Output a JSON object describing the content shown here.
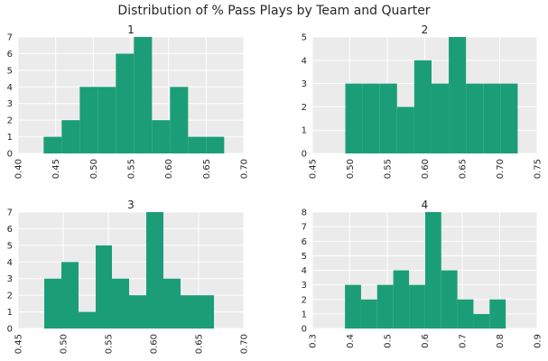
{
  "figure": {
    "title": "Distribution of % Pass Plays by Team and Quarter",
    "background": "#ffffff",
    "panel_background": "#ebebeb",
    "grid_color": "#ffffff",
    "bar_color": "#1b9e77",
    "text_color": "#262626"
  },
  "chart_data": [
    {
      "type": "bar",
      "title": "1",
      "xlabel": "",
      "ylabel": "",
      "xlim": [
        0.4,
        0.7
      ],
      "ylim": [
        0,
        7
      ],
      "xticks": [
        "0.40",
        "0.45",
        "0.50",
        "0.55",
        "0.60",
        "0.65",
        "0.70"
      ],
      "yticks": [
        "0",
        "1",
        "2",
        "3",
        "4",
        "5",
        "6",
        "7"
      ],
      "grid": true,
      "bins": [
        {
          "x0": 0.434,
          "x1": 0.458,
          "count": 1
        },
        {
          "x0": 0.458,
          "x1": 0.482,
          "count": 2
        },
        {
          "x0": 0.482,
          "x1": 0.506,
          "count": 4
        },
        {
          "x0": 0.506,
          "x1": 0.53,
          "count": 4
        },
        {
          "x0": 0.53,
          "x1": 0.554,
          "count": 6
        },
        {
          "x0": 0.554,
          "x1": 0.578,
          "count": 7
        },
        {
          "x0": 0.578,
          "x1": 0.602,
          "count": 2
        },
        {
          "x0": 0.602,
          "x1": 0.626,
          "count": 4
        },
        {
          "x0": 0.626,
          "x1": 0.65,
          "count": 1
        },
        {
          "x0": 0.65,
          "x1": 0.674,
          "count": 1
        }
      ]
    },
    {
      "type": "bar",
      "title": "2",
      "xlabel": "",
      "ylabel": "",
      "xlim": [
        0.45,
        0.75
      ],
      "ylim": [
        0,
        5
      ],
      "xticks": [
        "0.45",
        "0.50",
        "0.55",
        "0.60",
        "0.65",
        "0.70",
        "0.75"
      ],
      "yticks": [
        "0",
        "1",
        "2",
        "3",
        "4",
        "5"
      ],
      "grid": true,
      "bins": [
        {
          "x0": 0.494,
          "x1": 0.517,
          "count": 3
        },
        {
          "x0": 0.517,
          "x1": 0.54,
          "count": 3
        },
        {
          "x0": 0.54,
          "x1": 0.563,
          "count": 3
        },
        {
          "x0": 0.563,
          "x1": 0.586,
          "count": 2
        },
        {
          "x0": 0.586,
          "x1": 0.609,
          "count": 4
        },
        {
          "x0": 0.609,
          "x1": 0.632,
          "count": 3
        },
        {
          "x0": 0.632,
          "x1": 0.655,
          "count": 5
        },
        {
          "x0": 0.655,
          "x1": 0.678,
          "count": 3
        },
        {
          "x0": 0.678,
          "x1": 0.701,
          "count": 3
        },
        {
          "x0": 0.701,
          "x1": 0.724,
          "count": 3
        }
      ]
    },
    {
      "type": "bar",
      "title": "3",
      "xlabel": "",
      "ylabel": "",
      "xlim": [
        0.45,
        0.7
      ],
      "ylim": [
        0,
        7
      ],
      "xticks": [
        "0.45",
        "0.50",
        "0.55",
        "0.60",
        "0.65",
        "0.70"
      ],
      "yticks": [
        "0",
        "1",
        "2",
        "3",
        "4",
        "5",
        "6",
        "7"
      ],
      "grid": true,
      "bins": [
        {
          "x0": 0.479,
          "x1": 0.498,
          "count": 3
        },
        {
          "x0": 0.498,
          "x1": 0.517,
          "count": 4
        },
        {
          "x0": 0.517,
          "x1": 0.536,
          "count": 1
        },
        {
          "x0": 0.536,
          "x1": 0.554,
          "count": 5
        },
        {
          "x0": 0.554,
          "x1": 0.573,
          "count": 3
        },
        {
          "x0": 0.573,
          "x1": 0.592,
          "count": 2
        },
        {
          "x0": 0.592,
          "x1": 0.611,
          "count": 7
        },
        {
          "x0": 0.611,
          "x1": 0.63,
          "count": 3
        },
        {
          "x0": 0.63,
          "x1": 0.648,
          "count": 2
        },
        {
          "x0": 0.648,
          "x1": 0.667,
          "count": 2
        }
      ]
    },
    {
      "type": "bar",
      "title": "4",
      "xlabel": "",
      "ylabel": "",
      "xlim": [
        0.3,
        0.9
      ],
      "ylim": [
        0,
        8
      ],
      "xticks": [
        "0.3",
        "0.4",
        "0.5",
        "0.6",
        "0.7",
        "0.8",
        "0.9"
      ],
      "yticks": [
        "0",
        "1",
        "2",
        "3",
        "4",
        "5",
        "6",
        "7",
        "8"
      ],
      "grid": true,
      "bins": [
        {
          "x0": 0.387,
          "x1": 0.43,
          "count": 3
        },
        {
          "x0": 0.43,
          "x1": 0.473,
          "count": 2
        },
        {
          "x0": 0.473,
          "x1": 0.516,
          "count": 3
        },
        {
          "x0": 0.516,
          "x1": 0.558,
          "count": 4
        },
        {
          "x0": 0.558,
          "x1": 0.601,
          "count": 3
        },
        {
          "x0": 0.601,
          "x1": 0.644,
          "count": 8
        },
        {
          "x0": 0.644,
          "x1": 0.687,
          "count": 4
        },
        {
          "x0": 0.687,
          "x1": 0.73,
          "count": 2
        },
        {
          "x0": 0.73,
          "x1": 0.773,
          "count": 1
        },
        {
          "x0": 0.773,
          "x1": 0.816,
          "count": 2
        }
      ]
    }
  ]
}
